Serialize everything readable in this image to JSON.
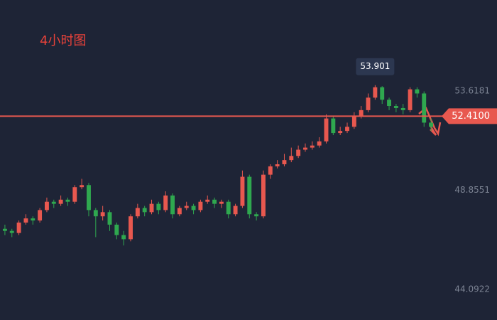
{
  "chart_data": {
    "type": "candlestick",
    "title": "4小时图",
    "up_color": "#e8584f",
    "down_color": "#2fa84f",
    "line_color": "#e8584f",
    "open": [
      47.0,
      46.9,
      46.8,
      47.3,
      47.5,
      47.4,
      47.9,
      48.3,
      48.2,
      48.4,
      48.3,
      49.0,
      49.1,
      47.9,
      47.6,
      47.8,
      47.2,
      46.7,
      46.5,
      47.6,
      48.0,
      47.8,
      48.2,
      47.9,
      48.6,
      47.7,
      48.0,
      48.1,
      47.9,
      48.3,
      48.4,
      48.2,
      48.3,
      47.7,
      48.1,
      49.5,
      47.7,
      47.6,
      49.6,
      50.0,
      50.1,
      50.3,
      50.5,
      50.8,
      50.9,
      51.0,
      51.2,
      52.3,
      51.6,
      51.7,
      51.9,
      52.4,
      52.7,
      53.3,
      53.8,
      53.2,
      52.9,
      52.8,
      52.7,
      53.7,
      53.5,
      52.1
    ],
    "high": [
      47.2,
      47.0,
      47.4,
      47.7,
      47.6,
      48.0,
      48.5,
      48.4,
      48.6,
      48.5,
      49.1,
      49.4,
      49.2,
      48.0,
      48.1,
      47.9,
      47.3,
      46.9,
      47.7,
      48.2,
      48.1,
      48.4,
      48.3,
      48.8,
      48.7,
      48.1,
      48.3,
      48.2,
      48.4,
      48.6,
      48.5,
      48.4,
      48.4,
      48.2,
      49.8,
      49.6,
      47.8,
      49.8,
      50.1,
      50.3,
      50.6,
      50.9,
      51.0,
      51.1,
      51.2,
      51.4,
      52.5,
      52.4,
      51.9,
      52.1,
      52.6,
      52.9,
      53.5,
      53.901,
      53.85,
      53.3,
      53.0,
      53.0,
      53.8,
      53.8,
      53.6,
      52.3
    ],
    "low": [
      46.7,
      46.6,
      46.7,
      47.2,
      47.2,
      47.3,
      47.8,
      48.0,
      48.1,
      48.1,
      48.2,
      48.9,
      47.6,
      46.6,
      47.4,
      46.9,
      46.5,
      46.2,
      46.4,
      47.5,
      47.6,
      47.7,
      47.7,
      47.8,
      47.5,
      47.6,
      47.9,
      47.7,
      47.8,
      48.2,
      48.0,
      48.0,
      47.5,
      47.6,
      48.0,
      47.5,
      47.4,
      47.5,
      49.4,
      49.9,
      50.0,
      50.2,
      50.4,
      50.7,
      50.8,
      50.9,
      51.1,
      51.5,
      51.5,
      51.6,
      51.8,
      52.3,
      52.6,
      53.2,
      53.0,
      52.7,
      52.6,
      52.5,
      52.6,
      53.3,
      51.9,
      51.7
    ],
    "close": [
      46.9,
      46.8,
      47.3,
      47.5,
      47.4,
      47.9,
      48.3,
      48.2,
      48.4,
      48.3,
      49.0,
      49.1,
      47.9,
      47.6,
      47.8,
      47.2,
      46.7,
      46.5,
      47.6,
      48.0,
      47.8,
      48.2,
      47.9,
      48.6,
      47.7,
      48.0,
      48.1,
      47.9,
      48.3,
      48.4,
      48.2,
      48.3,
      47.7,
      48.1,
      49.5,
      47.7,
      47.6,
      49.6,
      50.0,
      50.1,
      50.3,
      50.5,
      50.8,
      50.9,
      51.0,
      51.2,
      52.3,
      51.6,
      51.7,
      51.9,
      52.4,
      52.7,
      53.3,
      53.8,
      53.2,
      52.9,
      52.8,
      52.7,
      53.7,
      53.5,
      52.1,
      51.9
    ],
    "ylim": [
      42.62,
      57.99
    ],
    "yticks": [
      53.6181,
      48.8551,
      44.0922
    ],
    "grid": false,
    "price_line": {
      "value": 52.41,
      "label": "52.4100"
    }
  }
}
